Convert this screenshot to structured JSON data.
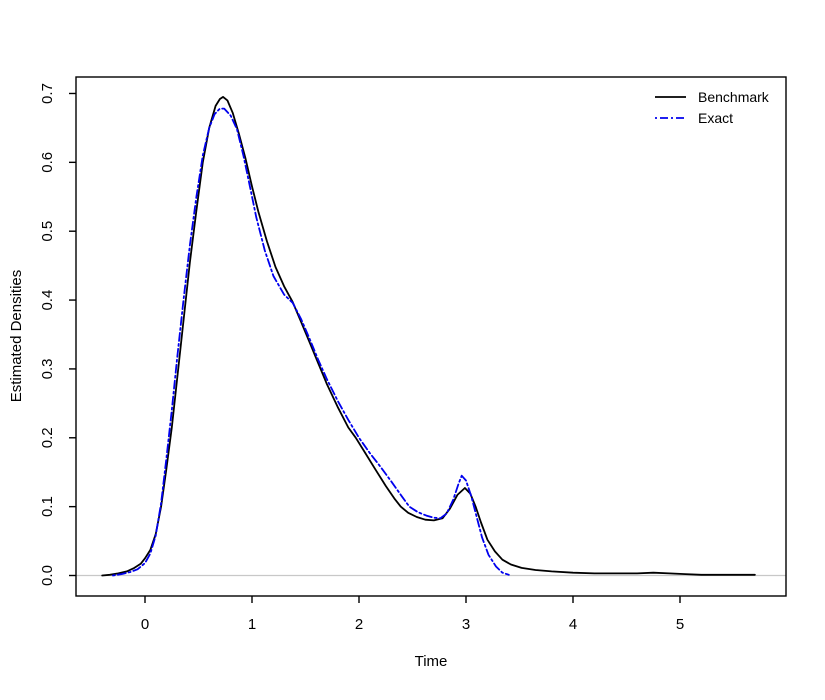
{
  "chart_data": {
    "type": "line",
    "title": "",
    "xlabel": "Time",
    "ylabel": "Estimated Densities",
    "xlim": [
      -0.64,
      6.0
    ],
    "ylim": [
      0,
      0.723
    ],
    "grid": false,
    "legend_position": "top-right",
    "x_tick_values": [
      0,
      1,
      2,
      3,
      4,
      5
    ],
    "x_tick_labels": [
      "0",
      "1",
      "2",
      "3",
      "4",
      "5"
    ],
    "y_tick_values": [
      0.0,
      0.1,
      0.2,
      0.3,
      0.4,
      0.5,
      0.6,
      0.7
    ],
    "y_tick_labels": [
      "0.0",
      "0.1",
      "0.2",
      "0.3",
      "0.4",
      "0.5",
      "0.6",
      "0.7"
    ],
    "baseline_y": 0,
    "baseline_color": "#c8c8c8",
    "axis_color": "#000000",
    "series": [
      {
        "name": "Benchmark",
        "color": "#000000",
        "line_style": "solid",
        "points": [
          [
            -0.4,
            0.0
          ],
          [
            -0.33,
            0.001
          ],
          [
            -0.25,
            0.003
          ],
          [
            -0.17,
            0.006
          ],
          [
            -0.1,
            0.011
          ],
          [
            -0.04,
            0.017
          ],
          [
            0.0,
            0.025
          ],
          [
            0.05,
            0.037
          ],
          [
            0.1,
            0.06
          ],
          [
            0.15,
            0.1
          ],
          [
            0.2,
            0.155
          ],
          [
            0.25,
            0.215
          ],
          [
            0.3,
            0.285
          ],
          [
            0.36,
            0.37
          ],
          [
            0.42,
            0.455
          ],
          [
            0.48,
            0.53
          ],
          [
            0.54,
            0.6
          ],
          [
            0.6,
            0.65
          ],
          [
            0.66,
            0.682
          ],
          [
            0.7,
            0.692
          ],
          [
            0.73,
            0.695
          ],
          [
            0.77,
            0.69
          ],
          [
            0.82,
            0.672
          ],
          [
            0.88,
            0.64
          ],
          [
            0.94,
            0.605
          ],
          [
            1.0,
            0.565
          ],
          [
            1.06,
            0.528
          ],
          [
            1.14,
            0.485
          ],
          [
            1.22,
            0.448
          ],
          [
            1.3,
            0.42
          ],
          [
            1.38,
            0.397
          ],
          [
            1.46,
            0.368
          ],
          [
            1.54,
            0.338
          ],
          [
            1.62,
            0.308
          ],
          [
            1.7,
            0.278
          ],
          [
            1.8,
            0.245
          ],
          [
            1.9,
            0.215
          ],
          [
            1.97,
            0.2
          ],
          [
            2.05,
            0.18
          ],
          [
            2.15,
            0.155
          ],
          [
            2.25,
            0.13
          ],
          [
            2.33,
            0.112
          ],
          [
            2.39,
            0.1
          ],
          [
            2.46,
            0.091
          ],
          [
            2.54,
            0.085
          ],
          [
            2.62,
            0.081
          ],
          [
            2.7,
            0.08
          ],
          [
            2.78,
            0.083
          ],
          [
            2.85,
            0.097
          ],
          [
            2.92,
            0.117
          ],
          [
            2.99,
            0.127
          ],
          [
            3.04,
            0.119
          ],
          [
            3.09,
            0.1
          ],
          [
            3.14,
            0.077
          ],
          [
            3.2,
            0.052
          ],
          [
            3.27,
            0.035
          ],
          [
            3.34,
            0.023
          ],
          [
            3.42,
            0.016
          ],
          [
            3.52,
            0.011
          ],
          [
            3.65,
            0.008
          ],
          [
            3.8,
            0.006
          ],
          [
            4.0,
            0.004
          ],
          [
            4.2,
            0.003
          ],
          [
            4.4,
            0.003
          ],
          [
            4.6,
            0.003
          ],
          [
            4.75,
            0.004
          ],
          [
            4.9,
            0.003
          ],
          [
            5.05,
            0.002
          ],
          [
            5.2,
            0.001
          ],
          [
            5.4,
            0.001
          ],
          [
            5.55,
            0.001
          ],
          [
            5.7,
            0.001
          ]
        ]
      },
      {
        "name": "Exact",
        "color": "#0000ee",
        "line_style": "dotdash",
        "points": [
          [
            -0.3,
            0.0
          ],
          [
            -0.22,
            0.002
          ],
          [
            -0.14,
            0.005
          ],
          [
            -0.07,
            0.009
          ],
          [
            0.0,
            0.018
          ],
          [
            0.05,
            0.032
          ],
          [
            0.1,
            0.058
          ],
          [
            0.15,
            0.105
          ],
          [
            0.2,
            0.17
          ],
          [
            0.25,
            0.24
          ],
          [
            0.3,
            0.315
          ],
          [
            0.36,
            0.4
          ],
          [
            0.42,
            0.48
          ],
          [
            0.48,
            0.55
          ],
          [
            0.54,
            0.61
          ],
          [
            0.6,
            0.65
          ],
          [
            0.65,
            0.67
          ],
          [
            0.7,
            0.678
          ],
          [
            0.74,
            0.678
          ],
          [
            0.8,
            0.668
          ],
          [
            0.86,
            0.648
          ],
          [
            0.92,
            0.61
          ],
          [
            0.98,
            0.565
          ],
          [
            1.04,
            0.52
          ],
          [
            1.12,
            0.472
          ],
          [
            1.2,
            0.435
          ],
          [
            1.3,
            0.408
          ],
          [
            1.38,
            0.396
          ],
          [
            1.46,
            0.372
          ],
          [
            1.54,
            0.343
          ],
          [
            1.62,
            0.313
          ],
          [
            1.7,
            0.285
          ],
          [
            1.8,
            0.254
          ],
          [
            1.9,
            0.226
          ],
          [
            2.0,
            0.2
          ],
          [
            2.1,
            0.178
          ],
          [
            2.2,
            0.158
          ],
          [
            2.3,
            0.137
          ],
          [
            2.4,
            0.115
          ],
          [
            2.47,
            0.1
          ],
          [
            2.55,
            0.092
          ],
          [
            2.63,
            0.087
          ],
          [
            2.7,
            0.084
          ],
          [
            2.76,
            0.083
          ],
          [
            2.82,
            0.09
          ],
          [
            2.88,
            0.11
          ],
          [
            2.93,
            0.133
          ],
          [
            2.96,
            0.145
          ],
          [
            3.0,
            0.138
          ],
          [
            3.05,
            0.115
          ],
          [
            3.1,
            0.085
          ],
          [
            3.15,
            0.055
          ],
          [
            3.21,
            0.03
          ],
          [
            3.28,
            0.013
          ],
          [
            3.34,
            0.004
          ],
          [
            3.4,
            0.001
          ]
        ]
      }
    ]
  }
}
